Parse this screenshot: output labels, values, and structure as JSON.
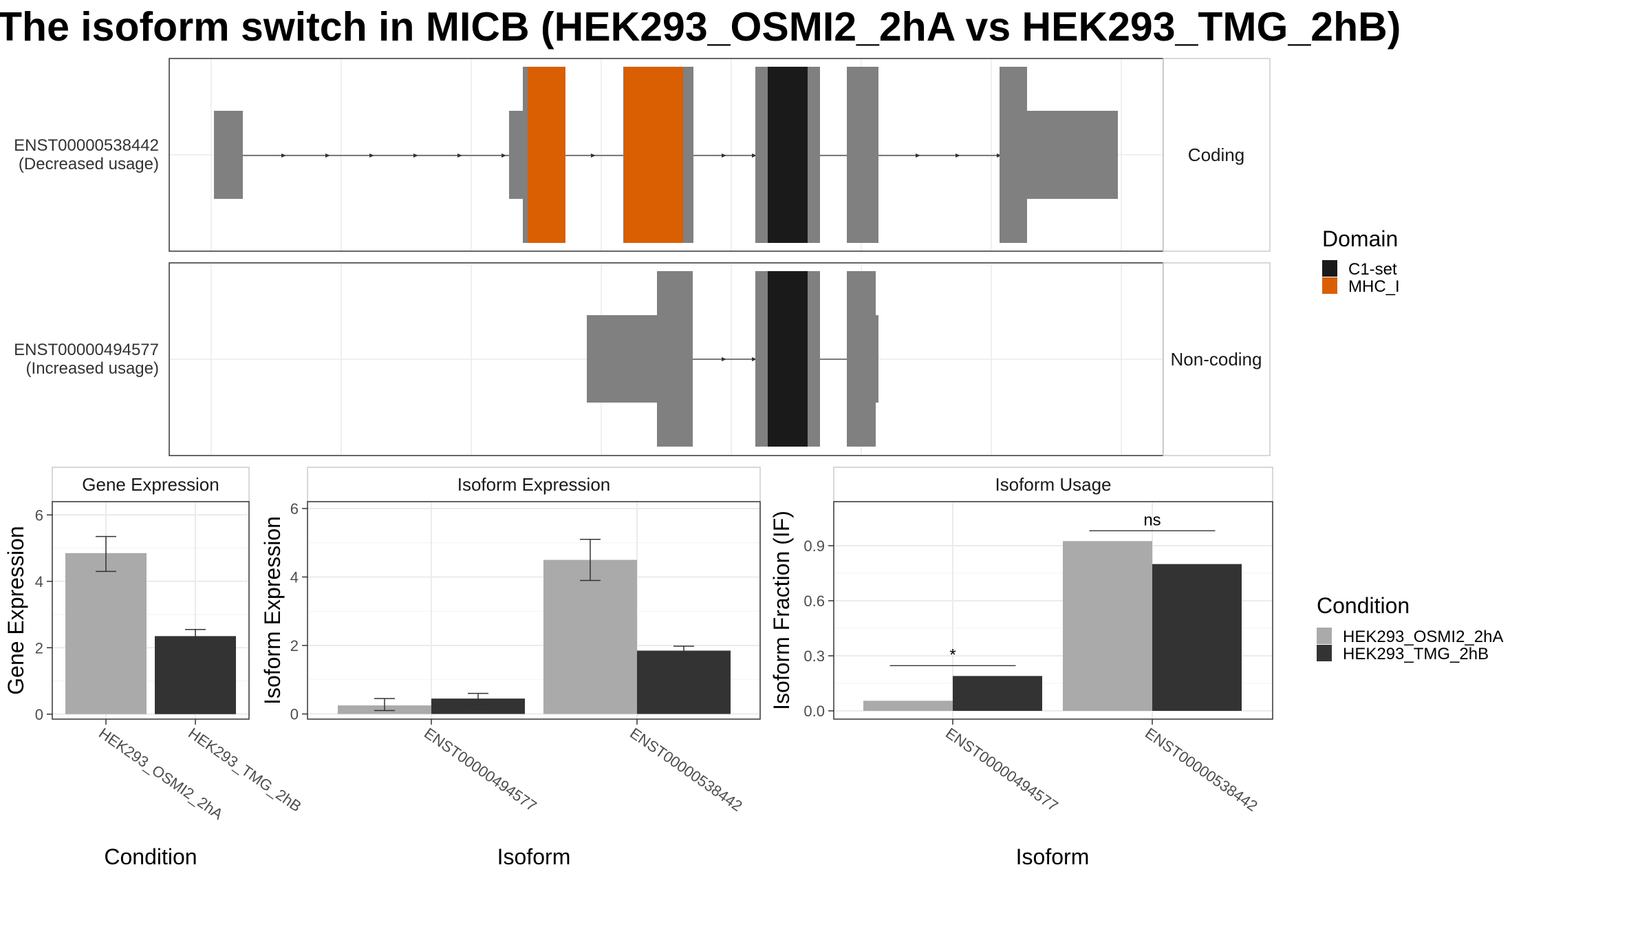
{
  "title": "The isoform switch in MICB (HEK293_OSMI2_2hA vs HEK293_TMG_2hB)",
  "colors": {
    "exon": "#808080",
    "domain_c1set": "#1a1a1a",
    "domain_mhc": "#d95f02",
    "condition_a": "#aaaaaa",
    "condition_b": "#333333",
    "grid": "#ebebeb",
    "panel_border": "#333333"
  },
  "transcripts": {
    "coding": {
      "id": "ENST00000538442",
      "status": "(Decreased usage)",
      "strip": "Coding"
    },
    "noncoding": {
      "id": "ENST00000494577",
      "status": "(Increased usage)",
      "strip": "Non-coding"
    }
  },
  "domain_legend": {
    "title": "Domain",
    "items": [
      {
        "label": "C1-set",
        "color": "#1a1a1a"
      },
      {
        "label": "MHC_I",
        "color": "#d95f02"
      }
    ]
  },
  "condition_legend": {
    "title": "Condition",
    "items": [
      {
        "label": "HEK293_OSMI2_2hA",
        "color": "#aaaaaa"
      },
      {
        "label": "HEK293_TMG_2hB",
        "color": "#333333"
      }
    ]
  },
  "chart_data": [
    {
      "type": "bar",
      "panel": "Gene Expression",
      "xlabel": "Condition",
      "ylabel": "Gene Expression",
      "categories": [
        "HEK293_OSMI2_2hA",
        "HEK293_TMG_2hB"
      ],
      "values": [
        4.85,
        2.35
      ],
      "error_low": [
        4.3,
        2.15
      ],
      "error_high": [
        5.35,
        2.55
      ],
      "ylim": [
        -0.15,
        6.4
      ],
      "yticks": [
        0,
        2,
        4,
        6
      ]
    },
    {
      "type": "bar",
      "panel": "Isoform Expression",
      "xlabel": "Isoform",
      "ylabel": "Isoform Expression",
      "categories": [
        "ENST00000494577",
        "ENST00000538442"
      ],
      "series": [
        {
          "name": "HEK293_OSMI2_2hA",
          "values": [
            0.25,
            4.5
          ],
          "error_low": [
            0.1,
            3.9
          ],
          "error_high": [
            0.45,
            5.1
          ]
        },
        {
          "name": "HEK293_TMG_2hB",
          "values": [
            0.45,
            1.85
          ],
          "error_low": [
            0.3,
            1.75
          ],
          "error_high": [
            0.6,
            1.98
          ]
        }
      ],
      "ylim": [
        -0.15,
        6.2
      ],
      "yticks": [
        0,
        2,
        4,
        6
      ]
    },
    {
      "type": "bar",
      "panel": "Isoform Usage",
      "xlabel": "Isoform",
      "ylabel": "Isoform Fraction (IF)",
      "categories": [
        "ENST00000494577",
        "ENST00000538442"
      ],
      "series": [
        {
          "name": "HEK293_OSMI2_2hA",
          "values": [
            0.055,
            0.925
          ]
        },
        {
          "name": "HEK293_TMG_2hB",
          "values": [
            0.19,
            0.8
          ]
        }
      ],
      "significance": [
        "*",
        "ns"
      ],
      "ylim": [
        -0.045,
        1.14
      ],
      "yticks": [
        0.0,
        0.3,
        0.6,
        0.9
      ],
      "ytick_labels": [
        "0.0",
        "0.3",
        "0.6",
        "0.9"
      ]
    }
  ]
}
